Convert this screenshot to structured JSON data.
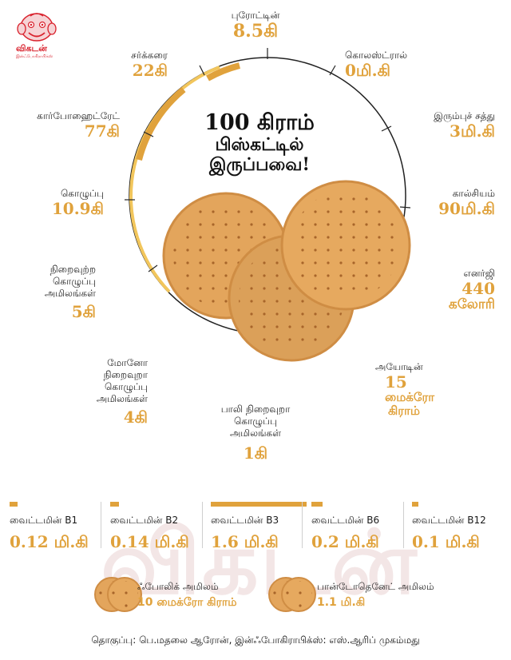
{
  "brand": {
    "name": "விகடன்",
    "tagline": "இன்ஃபோகிராபிக்ஸ்"
  },
  "title": {
    "line1": "100 கிராம்",
    "line2": "பிஸ்கட்டில்",
    "line3": "இருப்பவை!"
  },
  "nutrients": {
    "protein": {
      "label": "புரோட்டின்",
      "value": "8.5கி"
    },
    "sugar": {
      "label": "சர்க்கரை",
      "value": "22கி"
    },
    "cholesterol": {
      "label": "கொலஸ்ட்ரால்",
      "value": "0மி.கி"
    },
    "carbohydrate": {
      "label": "கார்போஹைட்ரேட்",
      "value": "77கி"
    },
    "iron": {
      "label": "இரும்புச் சத்து",
      "value": "3மி.கி"
    },
    "fat": {
      "label": "கொழுப்பு",
      "value": "10.9கி"
    },
    "calcium": {
      "label": "கால்சியம்",
      "value": "90மி.கி"
    },
    "saturated_fat": {
      "label_l1": "நிறைவுற்ற",
      "label_l2": "கொழுப்பு",
      "label_l3": "அமிலங்கள்",
      "value": "5கி"
    },
    "energy": {
      "label": "எனர்ஜி",
      "value_l1": "440",
      "value_l2": "கலோரி"
    },
    "mono_unsaturated": {
      "label_l1": "மோனோ",
      "label_l2": "நிறைவுறா",
      "label_l3": "கொழுப்பு",
      "label_l4": "அமிலங்கள்",
      "value": "4கி"
    },
    "iodine": {
      "label": "அயோடின்",
      "value_l1": "15",
      "value_l2": "மைக்ரோ",
      "value_l3": "கிராம்"
    },
    "poly_unsaturated": {
      "label_l1": "பாலி நிறைவுறா",
      "label_l2": "கொழுப்பு",
      "label_l3": "அமிலங்கள்",
      "value": "1கி"
    }
  },
  "vitamins": [
    {
      "name": "வைட்டமின் B1",
      "value": "0.12 மி.கி",
      "level": 0.08
    },
    {
      "name": "வைட்டமின் B2",
      "value": "0.14 மி.கி",
      "level": 0.09
    },
    {
      "name": "வைட்டமின் B3",
      "value": "1.6 மி.கி",
      "level": 1.0
    },
    {
      "name": "வைட்டமின் B6",
      "value": "0.2 மி.கி",
      "level": 0.12
    },
    {
      "name": "வைட்டமின் B12",
      "value": "0.1 மி.கி",
      "level": 0.06
    }
  ],
  "extras": [
    {
      "label": "ஃபோலிக் அமிலம்",
      "value": "10 மைக்ரோ கிராம்"
    },
    {
      "label": "பான்டோதெனேட் அமிலம்",
      "value": "1.1 மி.கி"
    }
  ],
  "credits": "தொகுப்பு: பெ.மதலை ஆரோன், இன்ஃபோகிராபிக்ஸ்: எஸ்.ஆரிப் முகம்மது",
  "colors": {
    "accent": "#e0a23c",
    "biscuit": "#e3a55c",
    "biscuit_edge": "#d08f45",
    "brand_red": "#d9232e",
    "ring": "#222222"
  }
}
